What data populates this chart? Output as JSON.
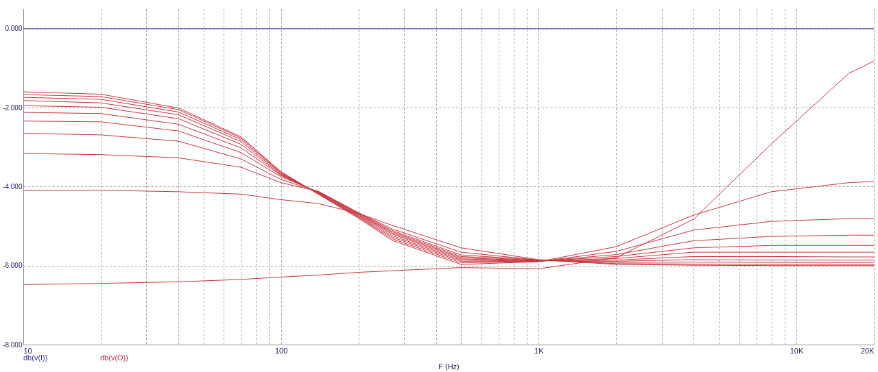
{
  "chart_data": {
    "type": "line",
    "xlabel": "F (Hz)",
    "log": "x",
    "grid": true,
    "legend": "bottom left",
    "line_style": "solid",
    "x": [
      10,
      20,
      40,
      70,
      100,
      140,
      200,
      270,
      500,
      1000,
      2000,
      4000,
      8000,
      16000,
      20000
    ],
    "xlim": [
      10,
      20000
    ],
    "xticks": [
      {
        "value": 10,
        "label": "10"
      },
      {
        "value": 20,
        "label": null
      },
      {
        "value": 30,
        "label": null
      },
      {
        "value": 40,
        "label": null
      },
      {
        "value": 50,
        "label": null
      },
      {
        "value": 60,
        "label": null
      },
      {
        "value": 70,
        "label": null
      },
      {
        "value": 80,
        "label": null
      },
      {
        "value": 90,
        "label": null
      },
      {
        "value": 100,
        "label": "100"
      },
      {
        "value": 200,
        "label": null
      },
      {
        "value": 300,
        "label": null
      },
      {
        "value": 400,
        "label": null
      },
      {
        "value": 500,
        "label": null
      },
      {
        "value": 600,
        "label": null
      },
      {
        "value": 700,
        "label": null
      },
      {
        "value": 800,
        "label": null
      },
      {
        "value": 900,
        "label": null
      },
      {
        "value": 1000,
        "label": "1K"
      },
      {
        "value": 2000,
        "label": null
      },
      {
        "value": 3000,
        "label": null
      },
      {
        "value": 4000,
        "label": null
      },
      {
        "value": 5000,
        "label": null
      },
      {
        "value": 6000,
        "label": null
      },
      {
        "value": 7000,
        "label": null
      },
      {
        "value": 8000,
        "label": null
      },
      {
        "value": 9000,
        "label": null
      },
      {
        "value": 10000,
        "label": "10K"
      },
      {
        "value": 20000,
        "label": "20K"
      }
    ],
    "ylim": [
      -8,
      0.5
    ],
    "yticks": [
      {
        "value": -8,
        "label": "-8.000"
      },
      {
        "value": -6,
        "label": "-6.000"
      },
      {
        "value": -4,
        "label": "-4.000"
      },
      {
        "value": -2,
        "label": "-2.000"
      },
      {
        "value": 0,
        "label": "0.000"
      }
    ],
    "series": [
      {
        "name": "db(v(I))",
        "color": "#333399",
        "values": [
          0,
          0,
          0,
          0,
          0,
          0,
          0,
          0,
          0,
          0,
          0,
          0,
          0,
          0,
          0
        ]
      },
      {
        "name": "db(v(O))",
        "color": "#c8323c",
        "values": [
          -1.6,
          -1.66,
          -2.01,
          -2.74,
          -3.62,
          -4.2,
          -4.8,
          -5.36,
          -5.97,
          -5.9,
          -5.52,
          -4.72,
          -4.13,
          -3.9,
          -3.87
        ]
      },
      {
        "color": "#c8323c",
        "values": [
          -1.67,
          -1.72,
          -2.05,
          -2.77,
          -3.64,
          -4.19,
          -4.78,
          -5.32,
          -5.93,
          -5.9,
          -5.64,
          -5.1,
          -4.88,
          -4.81,
          -4.8
        ]
      },
      {
        "color": "#c8323c",
        "values": [
          -1.74,
          -1.79,
          -2.11,
          -2.81,
          -3.66,
          -4.18,
          -4.76,
          -5.28,
          -5.89,
          -5.89,
          -5.72,
          -5.37,
          -5.26,
          -5.23,
          -5.23
        ]
      },
      {
        "color": "#c8323c",
        "values": [
          -1.82,
          -1.88,
          -2.18,
          -2.86,
          -3.68,
          -4.17,
          -4.74,
          -5.24,
          -5.86,
          -5.89,
          -5.77,
          -5.55,
          -5.49,
          -5.49,
          -5.49
        ]
      },
      {
        "color": "#c8323c",
        "values": [
          -1.95,
          -1.99,
          -2.28,
          -2.93,
          -3.7,
          -4.16,
          -4.72,
          -5.2,
          -5.83,
          -5.88,
          -5.82,
          -5.66,
          -5.66,
          -5.66,
          -5.66
        ]
      },
      {
        "color": "#c8323c",
        "values": [
          -2.12,
          -2.15,
          -2.42,
          -3.02,
          -3.72,
          -4.15,
          -4.7,
          -5.17,
          -5.8,
          -5.88,
          -5.86,
          -5.77,
          -5.77,
          -5.78,
          -5.78
        ]
      },
      {
        "color": "#c8323c",
        "values": [
          -2.34,
          -2.36,
          -2.59,
          -3.14,
          -3.75,
          -4.14,
          -4.69,
          -5.14,
          -5.77,
          -5.87,
          -5.89,
          -5.85,
          -5.86,
          -5.86,
          -5.86
        ]
      },
      {
        "color": "#c8323c",
        "values": [
          -2.65,
          -2.69,
          -2.85,
          -3.3,
          -3.82,
          -4.13,
          -4.67,
          -5.11,
          -5.73,
          -5.86,
          -5.92,
          -5.91,
          -5.92,
          -5.92,
          -5.92
        ]
      },
      {
        "color": "#c8323c",
        "values": [
          -3.16,
          -3.19,
          -3.27,
          -3.51,
          -3.9,
          -4.12,
          -4.66,
          -5.07,
          -5.66,
          -5.86,
          -5.95,
          -5.96,
          -5.97,
          -5.97,
          -5.97
        ]
      },
      {
        "color": "#c8323c",
        "values": [
          -4.1,
          -4.09,
          -4.13,
          -4.19,
          -4.33,
          -4.43,
          -4.68,
          -4.98,
          -5.55,
          -5.85,
          -5.97,
          -5.99,
          -6.0,
          -6.0,
          -6.0
        ]
      },
      {
        "color": "#c8323c",
        "values": [
          -6.48,
          -6.45,
          -6.41,
          -6.35,
          -6.29,
          -6.24,
          -6.17,
          -6.13,
          -6.05,
          -6.08,
          -5.8,
          -4.82,
          -2.92,
          -1.13,
          -0.82
        ]
      }
    ]
  }
}
